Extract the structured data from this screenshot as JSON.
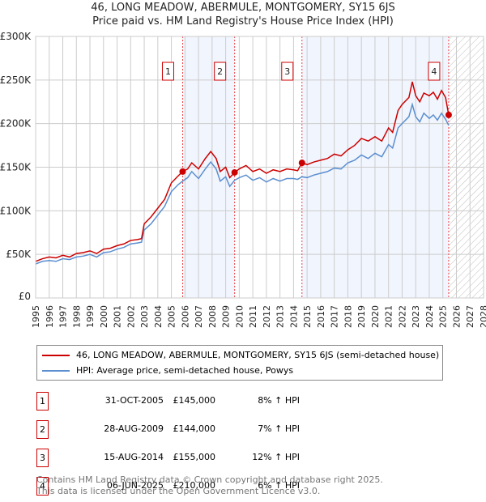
{
  "title": "46, LONG MEADOW, ABERMULE, MONTGOMERY, SY15 6JS",
  "subtitle": "Price paid vs. HM Land Registry's House Price Index (HPI)",
  "chart_data": {
    "type": "line",
    "title": "46, LONG MEADOW, ABERMULE, MONTGOMERY, SY15 6JS",
    "subtitle": "Price paid vs. HM Land Registry's House Price Index (HPI)",
    "xlim": [
      1995,
      2028
    ],
    "ylim": [
      0,
      300000
    ],
    "x_ticks": [
      "1995",
      "1996",
      "1997",
      "1998",
      "1999",
      "2000",
      "2001",
      "2002",
      "2003",
      "2004",
      "2005",
      "2006",
      "2007",
      "2008",
      "2009",
      "2010",
      "2011",
      "2012",
      "2013",
      "2014",
      "2015",
      "2016",
      "2017",
      "2018",
      "2019",
      "2020",
      "2021",
      "2022",
      "2023",
      "2024",
      "2025",
      "2026",
      "2027",
      "2028"
    ],
    "y_ticks": [
      {
        "v": 0,
        "label": "£0"
      },
      {
        "v": 50000,
        "label": "£50K"
      },
      {
        "v": 100000,
        "label": "£100K"
      },
      {
        "v": 150000,
        "label": "£150K"
      },
      {
        "v": 200000,
        "label": "£200K"
      },
      {
        "v": 250000,
        "label": "£250K"
      },
      {
        "v": 300000,
        "label": "£300K"
      }
    ],
    "grid": true,
    "series": [
      {
        "name": "46, LONG MEADOW, ABERMULE, MONTGOMERY, SY15 6JS (semi-detached house)",
        "color": "#cc0000",
        "x": [
          1995,
          1995.5,
          1996,
          1996.5,
          1997,
          1997.5,
          1998,
          1998.5,
          1999,
          1999.5,
          2000,
          2000.5,
          2001,
          2001.5,
          2002,
          2002.5,
          2002.8,
          2003,
          2003.5,
          2004,
          2004.5,
          2005,
          2005.5,
          2005.83,
          2006.2,
          2006.5,
          2007,
          2007.5,
          2007.9,
          2008.3,
          2008.6,
          2009,
          2009.3,
          2009.66,
          2010,
          2010.5,
          2011,
          2011.5,
          2012,
          2012.5,
          2013,
          2013.5,
          2014,
          2014.3,
          2014.62,
          2015,
          2015.5,
          2016,
          2016.5,
          2017,
          2017.5,
          2018,
          2018.5,
          2019,
          2019.5,
          2020,
          2020.5,
          2021,
          2021.3,
          2021.7,
          2022,
          2022.5,
          2022.75,
          2023,
          2023.3,
          2023.6,
          2024,
          2024.3,
          2024.6,
          2024.9,
          2025.2,
          2025.43
        ],
        "y": [
          42000,
          45000,
          47000,
          46000,
          49000,
          47000,
          51000,
          52000,
          54000,
          51000,
          56000,
          57000,
          60000,
          62000,
          66000,
          67000,
          68000,
          85000,
          93000,
          103000,
          113000,
          132000,
          140000,
          145000,
          148000,
          155000,
          148000,
          160000,
          168000,
          160000,
          145000,
          150000,
          138000,
          144000,
          148000,
          152000,
          145000,
          148000,
          143000,
          147000,
          145000,
          148000,
          147000,
          146000,
          155000,
          153000,
          156000,
          158000,
          160000,
          165000,
          163000,
          170000,
          175000,
          183000,
          180000,
          185000,
          180000,
          195000,
          190000,
          215000,
          222000,
          230000,
          248000,
          232000,
          225000,
          235000,
          232000,
          236000,
          228000,
          238000,
          230000,
          210000
        ]
      },
      {
        "name": "HPI: Average price, semi-detached house, Powys",
        "color": "#5b8fd0",
        "x": [
          1995,
          1995.5,
          1996,
          1996.5,
          1997,
          1997.5,
          1998,
          1998.5,
          1999,
          1999.5,
          2000,
          2000.5,
          2001,
          2001.5,
          2002,
          2002.5,
          2002.8,
          2003,
          2003.5,
          2004,
          2004.5,
          2005,
          2005.5,
          2005.83,
          2006.2,
          2006.5,
          2007,
          2007.5,
          2007.9,
          2008.3,
          2008.6,
          2009,
          2009.3,
          2009.66,
          2010,
          2010.5,
          2011,
          2011.5,
          2012,
          2012.5,
          2013,
          2013.5,
          2014,
          2014.3,
          2014.62,
          2015,
          2015.5,
          2016,
          2016.5,
          2017,
          2017.5,
          2018,
          2018.5,
          2019,
          2019.5,
          2020,
          2020.5,
          2021,
          2021.3,
          2021.7,
          2022,
          2022.5,
          2022.75,
          2023,
          2023.3,
          2023.6,
          2024,
          2024.3,
          2024.6,
          2024.9,
          2025.2,
          2025.43
        ],
        "y": [
          39000,
          42000,
          43000,
          42000,
          45000,
          44000,
          47000,
          48000,
          50000,
          47000,
          52000,
          53000,
          56000,
          58000,
          62000,
          63000,
          64000,
          78000,
          85000,
          95000,
          105000,
          122000,
          130000,
          134000,
          138000,
          145000,
          137000,
          148000,
          156000,
          148000,
          134000,
          139000,
          128000,
          135000,
          138000,
          141000,
          135000,
          138000,
          133000,
          137000,
          134000,
          137000,
          137000,
          136000,
          139000,
          138000,
          141000,
          143000,
          145000,
          149000,
          148000,
          155000,
          158000,
          164000,
          160000,
          166000,
          162000,
          176000,
          172000,
          195000,
          200000,
          208000,
          222000,
          208000,
          202000,
          212000,
          206000,
          210000,
          204000,
          212000,
          205000,
          198000
        ]
      }
    ],
    "sales": [
      {
        "id": "1",
        "x": 2005.83,
        "y": 145000
      },
      {
        "id": "2",
        "x": 2009.66,
        "y": 144000
      },
      {
        "id": "3",
        "x": 2014.62,
        "y": 155000
      },
      {
        "id": "4",
        "x": 2025.43,
        "y": 210000
      }
    ],
    "shaded_ranges": [
      [
        2005.83,
        2009.66
      ],
      [
        2014.62,
        2025.43
      ]
    ],
    "forecast_hatch_from": 2025.43
  },
  "legend": {
    "price": "46, LONG MEADOW, ABERMULE, MONTGOMERY, SY15 6JS (semi-detached house)",
    "hpi": "HPI: Average price, semi-detached house, Powys"
  },
  "transactions": [
    {
      "id": "1",
      "date": "31-OCT-2005",
      "price": "£145,000",
      "hpi": "8% ↑ HPI"
    },
    {
      "id": "2",
      "date": "28-AUG-2009",
      "price": "£144,000",
      "hpi": "7% ↑ HPI"
    },
    {
      "id": "3",
      "date": "15-AUG-2014",
      "price": "£155,000",
      "hpi": "12% ↑ HPI"
    },
    {
      "id": "4",
      "date": "06-JUN-2025",
      "price": "£210,000",
      "hpi": "6% ↑ HPI"
    }
  ],
  "footer": {
    "line1": "Contains HM Land Registry data © Crown copyright and database right 2025.",
    "line2": "This data is licensed under the Open Government Licence v3.0."
  }
}
